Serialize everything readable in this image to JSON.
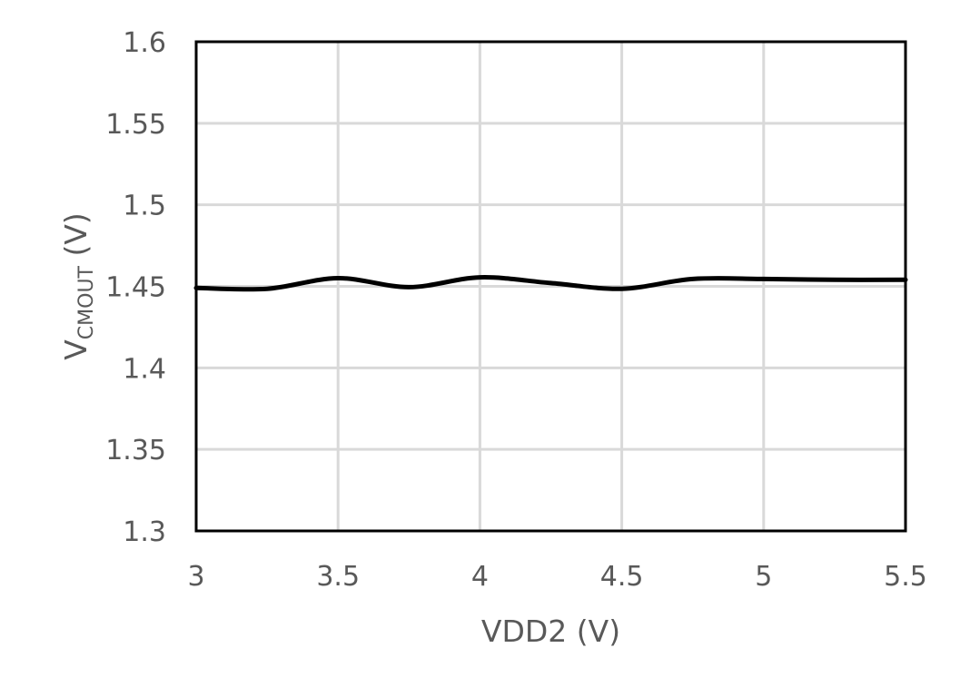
{
  "chart_data": {
    "type": "line",
    "xlabel": "VDD2 (V)",
    "ylabel": {
      "main": "V",
      "subscript": "CMOUT",
      "unit": " (V)"
    },
    "xlim": [
      3,
      5.5
    ],
    "ylim": [
      1.3,
      1.6
    ],
    "x_ticks": [
      3,
      3.5,
      4,
      4.5,
      5,
      5.5
    ],
    "x_tick_labels": [
      "3",
      "3.5",
      "4",
      "4.5",
      "5",
      "5.5"
    ],
    "y_ticks": [
      1.3,
      1.35,
      1.4,
      1.45,
      1.5,
      1.55,
      1.6
    ],
    "y_tick_labels": [
      "1.3",
      "1.35",
      "1.4",
      "1.45",
      "1.5",
      "1.55",
      "1.6"
    ],
    "grid": true,
    "legend": "none",
    "series": [
      {
        "x": [
          3,
          3.25,
          3.5,
          3.75,
          4,
          4.25,
          4.5,
          4.75,
          5,
          5.25,
          5.5
        ],
        "y": [
          1.449,
          1.4485,
          1.455,
          1.4495,
          1.4555,
          1.452,
          1.4485,
          1.4545,
          1.4545,
          1.454,
          1.454
        ],
        "color": "#000000"
      }
    ],
    "colors": {
      "line": "#000000",
      "grid": "#d9d9d9",
      "frame": "#000000",
      "text": "#595959"
    }
  }
}
